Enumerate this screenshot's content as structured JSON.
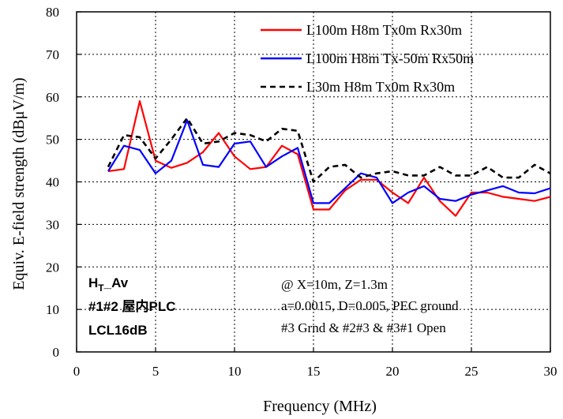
{
  "chart_data": {
    "type": "line",
    "xlabel": "Frequency (MHz)",
    "ylabel": "Equiv. E-field strength (dBμV/m)",
    "xlim": [
      0,
      30
    ],
    "ylim": [
      0,
      80
    ],
    "xticks": [
      0,
      5,
      10,
      15,
      20,
      25,
      30
    ],
    "yticks": [
      0,
      10,
      20,
      30,
      40,
      50,
      60,
      70,
      80
    ],
    "grid": true,
    "legend_position": "top-right",
    "series": [
      {
        "name": "L100m H8m Tx0m Rx30m",
        "color": "#ff0000",
        "style": "solid",
        "x": [
          2,
          3,
          4,
          5,
          6,
          7,
          8,
          9,
          10,
          11,
          12,
          13,
          14,
          15,
          16,
          17,
          18,
          19,
          20,
          21,
          22,
          23,
          24,
          25,
          26,
          27,
          28,
          29,
          30
        ],
        "y": [
          42.5,
          43,
          59,
          45,
          43.3,
          44.5,
          47,
          51.5,
          46,
          43,
          43.5,
          48.5,
          46.5,
          33.5,
          33.5,
          38,
          40.5,
          40.5,
          37.5,
          35,
          41,
          35.5,
          32,
          37.5,
          37.5,
          36.5,
          36,
          35.5,
          36.5
        ]
      },
      {
        "name": "L100m H8m Tx-50m Rx50m",
        "color": "#0000ff",
        "style": "solid",
        "x": [
          2,
          3,
          4,
          5,
          6,
          7,
          8,
          9,
          10,
          11,
          12,
          13,
          14,
          15,
          16,
          17,
          18,
          19,
          20,
          21,
          22,
          23,
          24,
          25,
          26,
          27,
          28,
          29,
          30
        ],
        "y": [
          42.5,
          48.5,
          47.5,
          42,
          45,
          54.5,
          44,
          43.5,
          49,
          49.5,
          43.5,
          46,
          48,
          35,
          35,
          38.5,
          42,
          41,
          35,
          37.5,
          39,
          36,
          35.5,
          37,
          38,
          39,
          37.5,
          37.3,
          38.5
        ]
      },
      {
        "name": "L30m H8m Tx0m Rx30m",
        "color": "#000000",
        "style": "dashed",
        "x": [
          2,
          3,
          4,
          5,
          6,
          7,
          8,
          9,
          10,
          11,
          12,
          13,
          14,
          15,
          16,
          17,
          18,
          19,
          20,
          21,
          22,
          23,
          24,
          25,
          26,
          27,
          28,
          29,
          30
        ],
        "y": [
          43.5,
          51,
          50.5,
          45.5,
          50,
          55,
          49,
          49.5,
          51.5,
          51,
          49.5,
          52.5,
          52,
          40,
          43.5,
          44,
          41,
          42,
          42.5,
          41.5,
          41.5,
          43.5,
          41.5,
          41.5,
          43.5,
          41,
          41,
          44,
          42
        ]
      }
    ],
    "annotations": {
      "left": {
        "line1_main": "H",
        "line1_sub": "T",
        "line1_rest": "_Av",
        "line2": "#1#2 屋内PLC",
        "line3": "LCL16dB"
      },
      "right": {
        "line1": "@ X=10m, Z=1.3m",
        "line2": "a=0.0015, D=0.005, PEC ground",
        "line3": "#3 Grnd & #2#3 & #3#1 Open"
      }
    }
  }
}
